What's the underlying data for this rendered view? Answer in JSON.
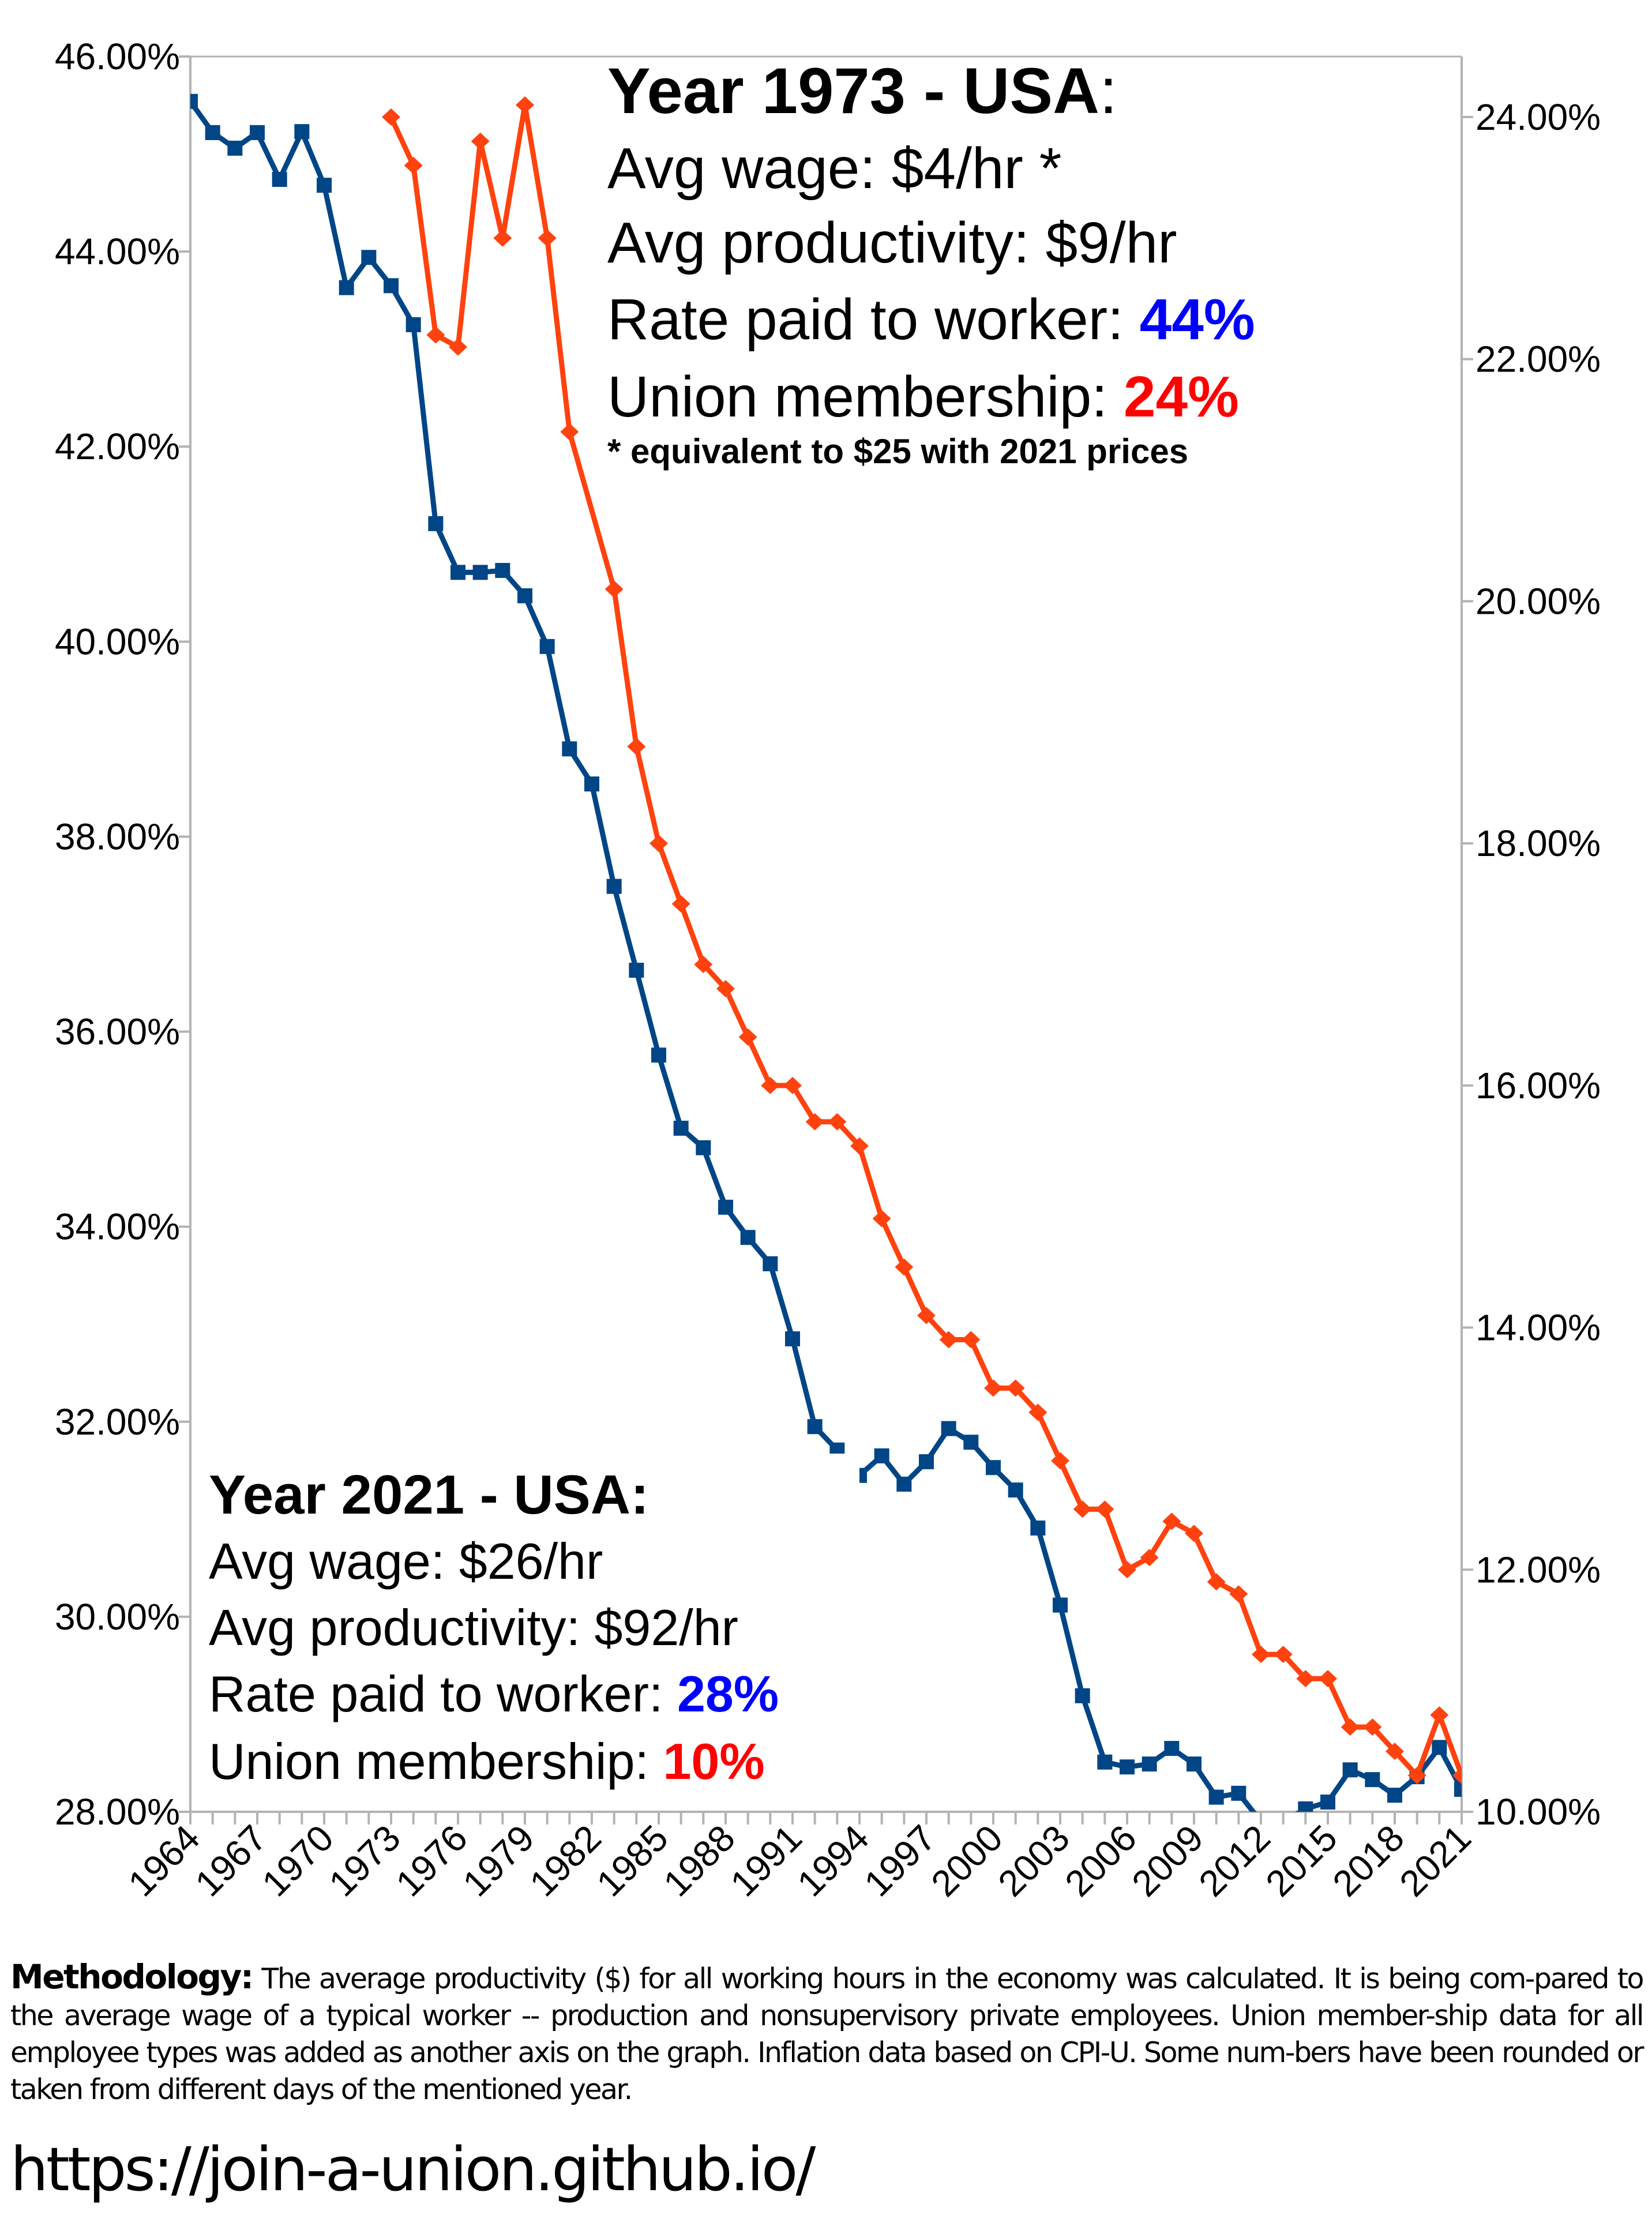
{
  "colors": {
    "wage_ratio_series": "#004586",
    "union_series": "#ff420e",
    "highlight_blue": "#0000ff",
    "highlight_red": "#ff0000"
  },
  "annotation_1973": {
    "title": "Year 1973 - USA",
    "title_suffix": ":",
    "wage": "Avg wage: $4/hr *",
    "productivity": "Avg productivity: $9/hr",
    "rate_label": "Rate paid to worker: ",
    "rate_value": "44%",
    "union_label": "Union membership: ",
    "union_value": "24%",
    "footnote": "* equivalent to $25 with 2021 prices"
  },
  "annotation_2021": {
    "title": "Year 2021 - USA:",
    "wage": "Avg wage: $26/hr",
    "productivity": "Avg productivity: $92/hr",
    "rate_label": "Rate paid to worker: ",
    "rate_value": "28%",
    "union_label": "Union membership: ",
    "union_value": "10%"
  },
  "methodology": {
    "label": "Methodology:",
    "text": " The average productivity ($) for all working hours in the economy was calculated. It is being com-pared to the average wage of a typical worker -- production and nonsupervisory private employees. Union member-ship data for all employee types was added as another axis on the graph. Inflation data based on CPI-U. Some num-bers have been rounded or taken from different days of the mentioned year."
  },
  "url": "https://join-a-union.github.io/",
  "chart_data": {
    "type": "line",
    "title": "",
    "x": [
      1964,
      1965,
      1966,
      1967,
      1968,
      1969,
      1970,
      1971,
      1972,
      1973,
      1974,
      1975,
      1976,
      1977,
      1978,
      1979,
      1980,
      1981,
      1982,
      1983,
      1984,
      1985,
      1986,
      1987,
      1988,
      1989,
      1990,
      1991,
      1992,
      1993,
      1994,
      1995,
      1996,
      1997,
      1998,
      1999,
      2000,
      2001,
      2002,
      2003,
      2004,
      2005,
      2006,
      2007,
      2008,
      2009,
      2010,
      2011,
      2012,
      2013,
      2014,
      2015,
      2016,
      2017,
      2018,
      2019,
      2020,
      2021
    ],
    "x_tick_labels": [
      "1964",
      "1967",
      "1970",
      "1973",
      "1976",
      "1979",
      "1982",
      "1985",
      "1988",
      "1991",
      "1994",
      "1997",
      "2000",
      "2003",
      "2006",
      "2009",
      "2012",
      "2015",
      "2018",
      "2021"
    ],
    "left_axis": {
      "ylim": [
        28,
        46
      ],
      "ticks": [
        "28.00%",
        "30.00%",
        "32.00%",
        "34.00%",
        "36.00%",
        "38.00%",
        "40.00%",
        "42.00%",
        "44.00%",
        "46.00%"
      ]
    },
    "right_axis": {
      "ylim": [
        10,
        24.5
      ],
      "ticks": [
        "10.00%",
        "12.00%",
        "14.00%",
        "16.00%",
        "18.00%",
        "20.00%",
        "22.00%",
        "24.00%"
      ]
    },
    "grid": false,
    "series": [
      {
        "axis": "left",
        "marker": "square",
        "values": [
          45.54,
          45.22,
          45.06,
          45.22,
          44.74,
          45.23,
          44.68,
          43.63,
          43.94,
          43.65,
          43.25,
          41.21,
          40.71,
          40.71,
          40.73,
          40.47,
          39.95,
          38.9,
          38.54,
          37.49,
          36.63,
          35.76,
          35.01,
          34.81,
          34.2,
          33.89,
          33.62,
          32.85,
          31.95,
          31.71,
          31.45,
          31.65,
          31.36,
          31.59,
          31.93,
          31.79,
          31.53,
          31.3,
          30.91,
          30.12,
          29.19,
          28.51,
          28.46,
          28.49,
          28.65,
          28.49,
          28.15,
          28.19,
          27.9,
          27.9,
          28.03,
          28.1,
          28.43,
          28.33,
          28.17,
          28.36,
          28.66,
          28.23
        ]
      },
      {
        "axis": "right",
        "marker": "diamond",
        "values": [
          null,
          null,
          null,
          null,
          null,
          null,
          null,
          null,
          null,
          24.0,
          23.6,
          22.2,
          22.1,
          23.8,
          23.0,
          24.1,
          23.0,
          21.4,
          null,
          20.1,
          18.8,
          18.0,
          17.5,
          17.0,
          16.8,
          16.4,
          16.0,
          16.0,
          15.7,
          15.7,
          15.5,
          14.9,
          14.5,
          14.1,
          13.9,
          13.9,
          13.5,
          13.5,
          13.3,
          12.9,
          12.5,
          12.5,
          12.0,
          12.1,
          12.4,
          12.3,
          11.9,
          11.8,
          11.3,
          11.3,
          11.1,
          11.1,
          10.7,
          10.7,
          10.5,
          10.3,
          10.8,
          10.3
        ]
      }
    ]
  }
}
